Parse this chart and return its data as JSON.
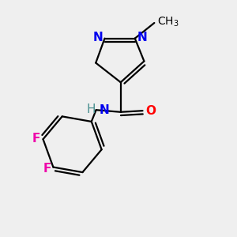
{
  "bg_color": "#efefef",
  "atom_color_N": "#0000ee",
  "atom_color_O": "#ff0000",
  "atom_color_F": "#ee00aa",
  "atom_color_NH_N": "#0000ee",
  "atom_color_H": "#4a9090",
  "atom_color_C": "#000000",
  "line_color": "#000000",
  "linewidth": 1.6,
  "font_size": 11,
  "font_size_methyl": 10,
  "xlim": [
    0.1,
    0.9
  ],
  "ylim": [
    0.05,
    0.95
  ]
}
